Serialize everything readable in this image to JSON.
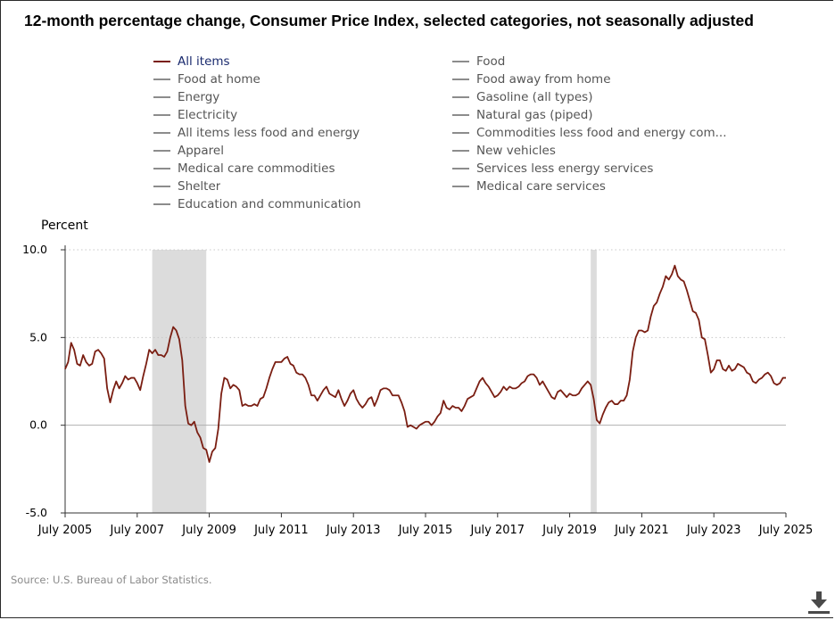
{
  "title": "12-month percentage change, Consumer Price Index, selected categories, not seasonally adjusted",
  "source": "Source: U.S. Bureau of Labor Statistics.",
  "legend": [
    {
      "label": "All items",
      "active": true
    },
    {
      "label": "Food",
      "active": false
    },
    {
      "label": "Food at home",
      "active": false
    },
    {
      "label": "Food away from home",
      "active": false
    },
    {
      "label": "Energy",
      "active": false
    },
    {
      "label": "Gasoline (all types)",
      "active": false
    },
    {
      "label": "Electricity",
      "active": false
    },
    {
      "label": "Natural gas (piped)",
      "active": false
    },
    {
      "label": "All items less food and energy",
      "active": false
    },
    {
      "label": "Commodities less food and energy com...",
      "active": false
    },
    {
      "label": "Apparel",
      "active": false
    },
    {
      "label": "New vehicles",
      "active": false
    },
    {
      "label": "Medical care commodities",
      "active": false
    },
    {
      "label": "Services less energy services",
      "active": false
    },
    {
      "label": "Shelter",
      "active": false
    },
    {
      "label": "Medical care services",
      "active": false
    },
    {
      "label": "Education and communication",
      "active": false
    }
  ],
  "colors": {
    "series": "#7a1e12",
    "inactive": "#8c8c8c",
    "recession": "#dcdcdc",
    "grid": "#c8c8c8"
  },
  "chart_data": {
    "type": "line",
    "ylabel": "Percent",
    "ylim": [
      -5,
      10
    ],
    "yticks": [
      -5.0,
      0.0,
      5.0,
      10.0
    ],
    "ytick_labels": [
      "-5.0",
      "0.0",
      "5.0",
      "10.0"
    ],
    "xlim": [
      "2005-07",
      "2025-07"
    ],
    "xticks": [
      "2005-07",
      "2007-07",
      "2009-07",
      "2011-07",
      "2013-07",
      "2015-07",
      "2017-07",
      "2019-07",
      "2021-07",
      "2023-07",
      "2025-07"
    ],
    "xtick_labels": [
      "July 2005",
      "July 2007",
      "July 2009",
      "July 2011",
      "July 2013",
      "July 2015",
      "July 2017",
      "July 2019",
      "July 2021",
      "July 2023",
      "July 2025"
    ],
    "grid": "horizontal dotted",
    "shaded_periods": [
      {
        "start": "2007-12",
        "end": "2009-06"
      },
      {
        "start": "2020-02",
        "end": "2020-04"
      }
    ],
    "series": [
      {
        "name": "All items",
        "points": [
          [
            "2005-07",
            3.2
          ],
          [
            "2005-08",
            3.6
          ],
          [
            "2005-09",
            4.7
          ],
          [
            "2005-10",
            4.3
          ],
          [
            "2005-11",
            3.5
          ],
          [
            "2005-12",
            3.4
          ],
          [
            "2006-01",
            4.0
          ],
          [
            "2006-02",
            3.6
          ],
          [
            "2006-03",
            3.4
          ],
          [
            "2006-04",
            3.5
          ],
          [
            "2006-05",
            4.2
          ],
          [
            "2006-06",
            4.3
          ],
          [
            "2006-07",
            4.1
          ],
          [
            "2006-08",
            3.8
          ],
          [
            "2006-09",
            2.1
          ],
          [
            "2006-10",
            1.3
          ],
          [
            "2006-11",
            2.0
          ],
          [
            "2006-12",
            2.5
          ],
          [
            "2007-01",
            2.1
          ],
          [
            "2007-02",
            2.4
          ],
          [
            "2007-03",
            2.8
          ],
          [
            "2007-04",
            2.6
          ],
          [
            "2007-05",
            2.7
          ],
          [
            "2007-06",
            2.7
          ],
          [
            "2007-07",
            2.4
          ],
          [
            "2007-08",
            2.0
          ],
          [
            "2007-09",
            2.8
          ],
          [
            "2007-10",
            3.5
          ],
          [
            "2007-11",
            4.3
          ],
          [
            "2007-12",
            4.1
          ],
          [
            "2008-01",
            4.3
          ],
          [
            "2008-02",
            4.0
          ],
          [
            "2008-03",
            4.0
          ],
          [
            "2008-04",
            3.9
          ],
          [
            "2008-05",
            4.2
          ],
          [
            "2008-06",
            5.0
          ],
          [
            "2008-07",
            5.6
          ],
          [
            "2008-08",
            5.4
          ],
          [
            "2008-09",
            4.9
          ],
          [
            "2008-10",
            3.7
          ],
          [
            "2008-11",
            1.1
          ],
          [
            "2008-12",
            0.1
          ],
          [
            "2009-01",
            0.0
          ],
          [
            "2009-02",
            0.2
          ],
          [
            "2009-03",
            -0.4
          ],
          [
            "2009-04",
            -0.7
          ],
          [
            "2009-05",
            -1.3
          ],
          [
            "2009-06",
            -1.4
          ],
          [
            "2009-07",
            -2.1
          ],
          [
            "2009-08",
            -1.5
          ],
          [
            "2009-09",
            -1.3
          ],
          [
            "2009-10",
            -0.2
          ],
          [
            "2009-11",
            1.8
          ],
          [
            "2009-12",
            2.7
          ],
          [
            "2010-01",
            2.6
          ],
          [
            "2010-02",
            2.1
          ],
          [
            "2010-03",
            2.3
          ],
          [
            "2010-04",
            2.2
          ],
          [
            "2010-05",
            2.0
          ],
          [
            "2010-06",
            1.1
          ],
          [
            "2010-07",
            1.2
          ],
          [
            "2010-08",
            1.1
          ],
          [
            "2010-09",
            1.1
          ],
          [
            "2010-10",
            1.2
          ],
          [
            "2010-11",
            1.1
          ],
          [
            "2010-12",
            1.5
          ],
          [
            "2011-01",
            1.6
          ],
          [
            "2011-02",
            2.1
          ],
          [
            "2011-03",
            2.7
          ],
          [
            "2011-04",
            3.2
          ],
          [
            "2011-05",
            3.6
          ],
          [
            "2011-06",
            3.6
          ],
          [
            "2011-07",
            3.6
          ],
          [
            "2011-08",
            3.8
          ],
          [
            "2011-09",
            3.9
          ],
          [
            "2011-10",
            3.5
          ],
          [
            "2011-11",
            3.4
          ],
          [
            "2011-12",
            3.0
          ],
          [
            "2012-01",
            2.9
          ],
          [
            "2012-02",
            2.9
          ],
          [
            "2012-03",
            2.7
          ],
          [
            "2012-04",
            2.3
          ],
          [
            "2012-05",
            1.7
          ],
          [
            "2012-06",
            1.7
          ],
          [
            "2012-07",
            1.4
          ],
          [
            "2012-08",
            1.7
          ],
          [
            "2012-09",
            2.0
          ],
          [
            "2012-10",
            2.2
          ],
          [
            "2012-11",
            1.8
          ],
          [
            "2012-12",
            1.7
          ],
          [
            "2013-01",
            1.6
          ],
          [
            "2013-02",
            2.0
          ],
          [
            "2013-03",
            1.5
          ],
          [
            "2013-04",
            1.1
          ],
          [
            "2013-05",
            1.4
          ],
          [
            "2013-06",
            1.8
          ],
          [
            "2013-07",
            2.0
          ],
          [
            "2013-08",
            1.5
          ],
          [
            "2013-09",
            1.2
          ],
          [
            "2013-10",
            1.0
          ],
          [
            "2013-11",
            1.2
          ],
          [
            "2013-12",
            1.5
          ],
          [
            "2014-01",
            1.6
          ],
          [
            "2014-02",
            1.1
          ],
          [
            "2014-03",
            1.5
          ],
          [
            "2014-04",
            2.0
          ],
          [
            "2014-05",
            2.1
          ],
          [
            "2014-06",
            2.1
          ],
          [
            "2014-07",
            2.0
          ],
          [
            "2014-08",
            1.7
          ],
          [
            "2014-09",
            1.7
          ],
          [
            "2014-10",
            1.7
          ],
          [
            "2014-11",
            1.3
          ],
          [
            "2014-12",
            0.8
          ],
          [
            "2015-01",
            -0.1
          ],
          [
            "2015-02",
            0.0
          ],
          [
            "2015-03",
            -0.1
          ],
          [
            "2015-04",
            -0.2
          ],
          [
            "2015-05",
            0.0
          ],
          [
            "2015-06",
            0.1
          ],
          [
            "2015-07",
            0.2
          ],
          [
            "2015-08",
            0.2
          ],
          [
            "2015-09",
            0.0
          ],
          [
            "2015-10",
            0.2
          ],
          [
            "2015-11",
            0.5
          ],
          [
            "2015-12",
            0.7
          ],
          [
            "2016-01",
            1.4
          ],
          [
            "2016-02",
            1.0
          ],
          [
            "2016-03",
            0.9
          ],
          [
            "2016-04",
            1.1
          ],
          [
            "2016-05",
            1.0
          ],
          [
            "2016-06",
            1.0
          ],
          [
            "2016-07",
            0.8
          ],
          [
            "2016-08",
            1.1
          ],
          [
            "2016-09",
            1.5
          ],
          [
            "2016-10",
            1.6
          ],
          [
            "2016-11",
            1.7
          ],
          [
            "2016-12",
            2.1
          ],
          [
            "2017-01",
            2.5
          ],
          [
            "2017-02",
            2.7
          ],
          [
            "2017-03",
            2.4
          ],
          [
            "2017-04",
            2.2
          ],
          [
            "2017-05",
            1.9
          ],
          [
            "2017-06",
            1.6
          ],
          [
            "2017-07",
            1.7
          ],
          [
            "2017-08",
            1.9
          ],
          [
            "2017-09",
            2.2
          ],
          [
            "2017-10",
            2.0
          ],
          [
            "2017-11",
            2.2
          ],
          [
            "2017-12",
            2.1
          ],
          [
            "2018-01",
            2.1
          ],
          [
            "2018-02",
            2.2
          ],
          [
            "2018-03",
            2.4
          ],
          [
            "2018-04",
            2.5
          ],
          [
            "2018-05",
            2.8
          ],
          [
            "2018-06",
            2.9
          ],
          [
            "2018-07",
            2.9
          ],
          [
            "2018-08",
            2.7
          ],
          [
            "2018-09",
            2.3
          ],
          [
            "2018-10",
            2.5
          ],
          [
            "2018-11",
            2.2
          ],
          [
            "2018-12",
            1.9
          ],
          [
            "2019-01",
            1.6
          ],
          [
            "2019-02",
            1.5
          ],
          [
            "2019-03",
            1.9
          ],
          [
            "2019-04",
            2.0
          ],
          [
            "2019-05",
            1.8
          ],
          [
            "2019-06",
            1.6
          ],
          [
            "2019-07",
            1.8
          ],
          [
            "2019-08",
            1.7
          ],
          [
            "2019-09",
            1.7
          ],
          [
            "2019-10",
            1.8
          ],
          [
            "2019-11",
            2.1
          ],
          [
            "2019-12",
            2.3
          ],
          [
            "2020-01",
            2.5
          ],
          [
            "2020-02",
            2.3
          ],
          [
            "2020-03",
            1.5
          ],
          [
            "2020-04",
            0.3
          ],
          [
            "2020-05",
            0.1
          ],
          [
            "2020-06",
            0.6
          ],
          [
            "2020-07",
            1.0
          ],
          [
            "2020-08",
            1.3
          ],
          [
            "2020-09",
            1.4
          ],
          [
            "2020-10",
            1.2
          ],
          [
            "2020-11",
            1.2
          ],
          [
            "2020-12",
            1.4
          ],
          [
            "2021-01",
            1.4
          ],
          [
            "2021-02",
            1.7
          ],
          [
            "2021-03",
            2.6
          ],
          [
            "2021-04",
            4.2
          ],
          [
            "2021-05",
            5.0
          ],
          [
            "2021-06",
            5.4
          ],
          [
            "2021-07",
            5.4
          ],
          [
            "2021-08",
            5.3
          ],
          [
            "2021-09",
            5.4
          ],
          [
            "2021-10",
            6.2
          ],
          [
            "2021-11",
            6.8
          ],
          [
            "2021-12",
            7.0
          ],
          [
            "2022-01",
            7.5
          ],
          [
            "2022-02",
            7.9
          ],
          [
            "2022-03",
            8.5
          ],
          [
            "2022-04",
            8.3
          ],
          [
            "2022-05",
            8.6
          ],
          [
            "2022-06",
            9.1
          ],
          [
            "2022-07",
            8.5
          ],
          [
            "2022-08",
            8.3
          ],
          [
            "2022-09",
            8.2
          ],
          [
            "2022-10",
            7.7
          ],
          [
            "2022-11",
            7.1
          ],
          [
            "2022-12",
            6.5
          ],
          [
            "2023-01",
            6.4
          ],
          [
            "2023-02",
            6.0
          ],
          [
            "2023-03",
            5.0
          ],
          [
            "2023-04",
            4.9
          ],
          [
            "2023-05",
            4.0
          ],
          [
            "2023-06",
            3.0
          ],
          [
            "2023-07",
            3.2
          ],
          [
            "2023-08",
            3.7
          ],
          [
            "2023-09",
            3.7
          ],
          [
            "2023-10",
            3.2
          ],
          [
            "2023-11",
            3.1
          ],
          [
            "2023-12",
            3.4
          ],
          [
            "2024-01",
            3.1
          ],
          [
            "2024-02",
            3.2
          ],
          [
            "2024-03",
            3.5
          ],
          [
            "2024-04",
            3.4
          ],
          [
            "2024-05",
            3.3
          ],
          [
            "2024-06",
            3.0
          ],
          [
            "2024-07",
            2.9
          ],
          [
            "2024-08",
            2.5
          ],
          [
            "2024-09",
            2.4
          ],
          [
            "2024-10",
            2.6
          ],
          [
            "2024-11",
            2.7
          ],
          [
            "2024-12",
            2.9
          ],
          [
            "2025-01",
            3.0
          ],
          [
            "2025-02",
            2.8
          ],
          [
            "2025-03",
            2.4
          ],
          [
            "2025-04",
            2.3
          ],
          [
            "2025-05",
            2.4
          ],
          [
            "2025-06",
            2.7
          ],
          [
            "2025-07",
            2.7
          ]
        ]
      }
    ]
  }
}
